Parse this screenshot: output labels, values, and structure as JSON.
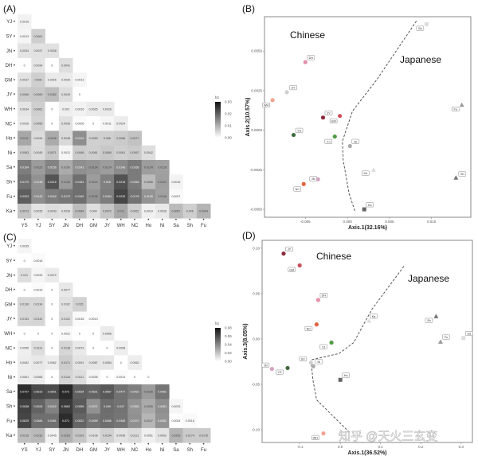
{
  "watermark": "知乎 @天火三玄变",
  "chart_data": [
    {
      "panel": "(A)",
      "type": "heatmap",
      "legend_title": "fst",
      "legend_ticks": [
        0.03,
        0.02,
        0.01,
        0.0
      ],
      "legend_tick_labels": [
        "0.03",
        "0.02",
        "0.01",
        "0.00"
      ],
      "scale_max": 0.03,
      "colors": {
        "low": "#ffffff",
        "high": "#111111"
      },
      "rows": [
        "YJ",
        "SY",
        "JN",
        "DH",
        "GM",
        "JY",
        "WH",
        "NC",
        "Ho",
        "Ni",
        "Sa",
        "Sh",
        "Fu",
        "Ka"
      ],
      "columns": [
        "YS",
        "YJ",
        "SY",
        "JN",
        "DH",
        "GM",
        "JY",
        "WH",
        "NC",
        "Ho",
        "Ni",
        "Sa",
        "Sh",
        "Fu"
      ],
      "values": [
        [
          0.0016
        ],
        [
          0.0013,
          0.0061
        ],
        [
          0.0034,
          0.0037,
          0.0038
        ],
        [
          0,
          0.0034,
          0,
          0.0041
        ],
        [
          0.0037,
          0.006,
          0.0026,
          0.0026,
          0.0013
        ],
        [
          0.0066,
          0.0069,
          0.0082,
          0.0043,
          0,
          null
        ],
        [
          0.0034,
          0.0061,
          0,
          0.002,
          0.0016,
          0.0025,
          0.0026
        ],
        [
          0.0026,
          0.0055,
          0,
          0.0039,
          0.0005,
          0,
          0.0011,
          0.0024
        ],
        [
          0.0111,
          0.0044,
          0.0106,
          0.0048,
          0.0142,
          0.0059,
          0.006,
          0.0066,
          0.0077
        ],
        [
          0.0063,
          0.0045,
          0.0071,
          0.0012,
          0.0066,
          0.0061,
          0.0069,
          0.0061,
          0.0067,
          0.0042
        ],
        [
          0.0164,
          0.0125,
          0.0156,
          0.0106,
          0.0141,
          0.0134,
          0.0124,
          0.0146,
          0.0166,
          0.0124,
          0.0118
        ],
        [
          0.0179,
          0.0138,
          0.0216,
          0.0126,
          0.0181,
          0.0124,
          0.016,
          0.0218,
          0.0166,
          0.0086,
          0.0121,
          0.0015
        ],
        [
          0.0203,
          0.0142,
          0.0162,
          0.0172,
          0.0182,
          0.0135,
          0.0164,
          0.0235,
          0.0176,
          0.0136,
          0.0118,
          0.0007
        ],
        [
          0.0073,
          0.0035,
          0.0043,
          0.0039,
          0.0084,
          0.004,
          0.0072,
          0.011,
          0.0061,
          0.0019,
          0.0028,
          0.0087,
          0.006,
          0.0094
        ]
      ]
    },
    {
      "panel": "(B)",
      "type": "scatter",
      "xlabel": "Axis.1(32.16%)",
      "ylabel": "Axis.2(10.57%)",
      "xlim": [
        -0.00986,
        0.01467
      ],
      "ylim": [
        -0.0055,
        0.00717
      ],
      "xticks": [
        -0.005,
        0.0,
        0.005,
        0.01
      ],
      "xtick_labels": [
        "-0.005",
        "0.000",
        "0.005",
        "0.010"
      ],
      "yticks": [
        0.005,
        0.0025,
        0.0,
        -0.0025,
        -0.005
      ],
      "ytick_labels": [
        "0.0050",
        "0.0025",
        "0.0000",
        "-0.0025",
        "-0.0050"
      ],
      "annotations": [
        "Chinese",
        "Japanese"
      ],
      "grid": false,
      "points": [
        {
          "label": "Sa",
          "x": 0.0094,
          "y": 0.0067,
          "shape": "square",
          "color": "#dddddd"
        },
        {
          "label": "DH",
          "x": -0.005,
          "y": 0.0043,
          "shape": "circle",
          "color": "#e58fa8"
        },
        {
          "label": "SY",
          "x": -0.0072,
          "y": 0.0024,
          "shape": "circle",
          "color": "#d0d0d0"
        },
        {
          "label": "WH",
          "x": -0.0089,
          "y": 0.0019,
          "shape": "circle",
          "color": "#f2a493"
        },
        {
          "label": "JY",
          "x": -0.0029,
          "y": 0.0008,
          "shape": "circle",
          "color": "#8c2a3c"
        },
        {
          "label": "GM",
          "x": -0.0009,
          "y": 0.0009,
          "shape": "circle",
          "color": "#c8505c"
        },
        {
          "label": "YS",
          "x": -0.0064,
          "y": -0.0003,
          "shape": "circle",
          "color": "#3d6b3d"
        },
        {
          "label": "YJ",
          "x": -0.0015,
          "y": -0.0004,
          "shape": "circle",
          "color": "#4f9b45"
        },
        {
          "label": "Ni",
          "x": 0.0003,
          "y": -0.001,
          "shape": "circle",
          "color": "#aaaaaa"
        },
        {
          "label": "Ka",
          "x": 0.0031,
          "y": -0.0025,
          "shape": "triangle",
          "color": "#dddddd"
        },
        {
          "label": "Fu",
          "x": 0.0136,
          "y": 0.0016,
          "shape": "triangle",
          "color": "#9a9a9a"
        },
        {
          "label": "Sh",
          "x": 0.0129,
          "y": -0.003,
          "shape": "triangle",
          "color": "#777777"
        },
        {
          "label": "JN",
          "x": -0.0035,
          "y": -0.0031,
          "shape": "circle",
          "color": "#d3a2c0"
        },
        {
          "label": "NC",
          "x": -0.0052,
          "y": -0.0034,
          "shape": "circle",
          "color": "#e1643f"
        },
        {
          "label": "Ho",
          "x": 0.002,
          "y": -0.005,
          "shape": "square",
          "color": "#666666"
        }
      ],
      "boundary": [
        [
          0.0082,
          0.0069
        ],
        [
          0.0035,
          0.0032
        ],
        [
          0.0006,
          0.0012
        ],
        [
          -0.0006,
          -0.0007
        ],
        [
          -0.0005,
          -0.0019
        ],
        [
          0.0002,
          -0.004
        ],
        [
          0.00095,
          -0.0052
        ]
      ]
    },
    {
      "panel": "(C)",
      "type": "heatmap",
      "legend_title": "fst",
      "legend_ticks": [
        0.08,
        0.06,
        0.04,
        0.02,
        0.0
      ],
      "legend_tick_labels": [
        "0.08",
        "0.06",
        "0.04",
        "0.02",
        "0.00"
      ],
      "scale_max": 0.08,
      "colors": {
        "low": "#ffffff",
        "high": "#111111"
      },
      "rows": [
        "YJ",
        "SY",
        "JN",
        "DH",
        "GM",
        "JY",
        "WH",
        "NC",
        "Ho",
        "Ni",
        "Sa",
        "Sh",
        "Fu",
        "Ka"
      ],
      "columns": [
        "YS",
        "YJ",
        "SY",
        "JN",
        "DH",
        "GM",
        "JY",
        "WH",
        "NC",
        "Ho",
        "Ni",
        "Sa",
        "Sh",
        "Fu"
      ],
      "values": [
        [
          0.0035
        ],
        [
          0,
          0.0018
        ],
        [
          0.011,
          0.0033,
          0.0072
        ],
        [
          0,
          0.0016,
          0,
          0.0077
        ],
        [
          0.0136,
          0.0134,
          0,
          0.0102,
          0.015
        ],
        [
          0.0134,
          0.0142,
          0,
          0.0122,
          0.0016,
          0.0013
        ],
        [
          0,
          0,
          0,
          0.0022,
          0,
          0,
          0.0066
        ],
        [
          0.0055,
          0.0113,
          0,
          0.0138,
          0.0073,
          0,
          0,
          0.0058
        ],
        [
          0.0062,
          0.0077,
          0.0062,
          0.0171,
          0.0091,
          0.0087,
          0.0084,
          0,
          0.0062
        ],
        [
          0.0061,
          0.0065,
          0,
          0.0144,
          0.0111,
          0.0036,
          0,
          0.0014,
          0,
          0
        ],
        [
          0.0707,
          0.0615,
          0.0601,
          0.072,
          0.0534,
          0.0521,
          0.0557,
          0.0477,
          0.0431,
          0.0336,
          0.0462
        ],
        [
          0.0638,
          0.0526,
          0.0422,
          0.0662,
          0.0556,
          0.0371,
          0.049,
          0.047,
          0.0363,
          0.0285,
          0.0381,
          0.0033
        ],
        [
          0.0625,
          0.0484,
          0.0481,
          0.071,
          0.0522,
          0.0459,
          0.0486,
          0.0465,
          0.0372,
          0.0247,
          0.0363,
          0.0004,
          0.0018
        ],
        [
          0.0216,
          0.0232,
          0.0045,
          0.0263,
          0.0193,
          0.0108,
          0.0154,
          0.0096,
          0.0121,
          0.0051,
          0.0092,
          0.0253,
          0.0174,
          0.0176
        ]
      ]
    },
    {
      "panel": "(D)",
      "type": "scatter",
      "xlabel": "Axis.1(36.52%)",
      "ylabel": "Axis.3(8.05%)",
      "xlim": [
        -0.1944,
        0.3283
      ],
      "ylim": [
        -0.114,
        0.1086
      ],
      "xticks": [
        -0.1,
        0.0,
        0.1,
        0.2,
        0.3
      ],
      "xtick_labels": [
        "-0.1",
        "0.0",
        "0.1",
        "0.2",
        "0.3"
      ],
      "yticks": [
        0.1,
        0.05,
        0.0,
        -0.05,
        -0.1
      ],
      "ytick_labels": [
        "0.10",
        "0.05",
        "0.00",
        "-0.05",
        "-0.10"
      ],
      "annotations": [
        "Chinese",
        "Japanese"
      ],
      "grid": false,
      "points": [
        {
          "label": "JY",
          "x": -0.141,
          "y": 0.094,
          "shape": "circle",
          "color": "#8c2a3c"
        },
        {
          "label": "GM",
          "x": -0.101,
          "y": 0.081,
          "shape": "circle",
          "color": "#c8505c"
        },
        {
          "label": "DH",
          "x": -0.055,
          "y": 0.043,
          "shape": "circle",
          "color": "#e58fa8"
        },
        {
          "label": "NC",
          "x": -0.059,
          "y": 0.016,
          "shape": "circle",
          "color": "#e1643f"
        },
        {
          "label": "YJ",
          "x": -0.022,
          "y": -0.004,
          "shape": "circle",
          "color": "#4f9b45"
        },
        {
          "label": "Ka",
          "x": 0.071,
          "y": 0.02,
          "shape": "triangle",
          "color": "#dddddd"
        },
        {
          "label": "Sh",
          "x": 0.238,
          "y": 0.025,
          "shape": "triangle",
          "color": "#777777"
        },
        {
          "label": "Fu",
          "x": 0.249,
          "y": -0.003,
          "shape": "triangle",
          "color": "#9a9a9a"
        },
        {
          "label": "Sa",
          "x": 0.306,
          "y": 0.001,
          "shape": "square",
          "color": "#dddddd"
        },
        {
          "label": "SY",
          "x": -0.073,
          "y": -0.026,
          "shape": "circle",
          "color": "#d0d0d0"
        },
        {
          "label": "Ni",
          "x": -0.067,
          "y": -0.03,
          "shape": "circle",
          "color": "#aaaaaa"
        },
        {
          "label": "JN",
          "x": -0.17,
          "y": -0.033,
          "shape": "circle",
          "color": "#d3a2c0"
        },
        {
          "label": "YS",
          "x": -0.131,
          "y": -0.032,
          "shape": "circle",
          "color": "#3d6b3d"
        },
        {
          "label": "Ho",
          "x": 0.0,
          "y": -0.045,
          "shape": "square",
          "color": "#666666"
        },
        {
          "label": "WH",
          "x": -0.042,
          "y": -0.104,
          "shape": "circle",
          "color": "#f2a493"
        }
      ],
      "boundary": [
        [
          0.158,
          0.08
        ],
        [
          0.079,
          0.033
        ],
        [
          0.033,
          -0.004
        ],
        [
          -0.003,
          -0.016
        ],
        [
          -0.073,
          -0.023
        ],
        [
          -0.068,
          -0.045
        ],
        [
          -0.059,
          -0.067
        ],
        [
          0.023,
          -0.103
        ]
      ]
    }
  ]
}
